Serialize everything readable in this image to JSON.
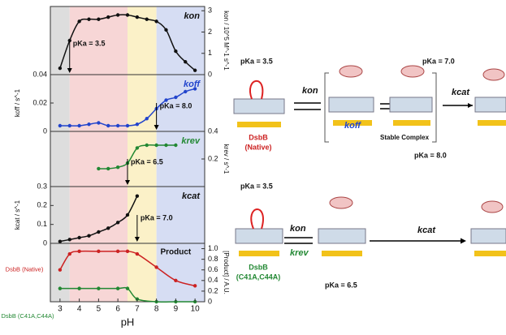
{
  "chart_data": [
    {
      "type": "line",
      "side": "right",
      "ylabel": "kon / 10^5 M^-1 s^-1",
      "ylim": [
        0,
        3.2
      ],
      "yticks": [
        0,
        1,
        2,
        3
      ],
      "series": [
        {
          "name": "kon",
          "color": "#111111",
          "x": [
            3,
            3.5,
            4,
            4.5,
            5,
            5.5,
            6,
            6.5,
            7,
            7.5,
            8,
            8.5,
            9,
            9.5,
            10
          ],
          "values": [
            0.3,
            1.6,
            2.5,
            2.6,
            2.6,
            2.7,
            2.8,
            2.8,
            2.7,
            2.6,
            2.5,
            2.1,
            1.1,
            0.6,
            0.2
          ]
        }
      ],
      "annotations": [
        {
          "text": "pKa = 3.5",
          "x": 3.5
        }
      ]
    },
    {
      "type": "line",
      "side": "left",
      "ylabel": "koff / s^-1",
      "ylim": [
        0,
        0.04
      ],
      "yticks": [
        0,
        0.02,
        0.04
      ],
      "series": [
        {
          "name": "koff",
          "color": "#2244cc",
          "x": [
            3,
            3.5,
            4,
            4.5,
            5,
            5.5,
            6,
            6.5,
            7,
            7.5,
            8,
            8.5,
            9,
            9.5,
            10
          ],
          "values": [
            0.004,
            0.004,
            0.004,
            0.005,
            0.006,
            0.004,
            0.004,
            0.004,
            0.005,
            0.009,
            0.016,
            0.022,
            0.024,
            0.028,
            0.03
          ]
        }
      ],
      "annotations": [
        {
          "text": "pKa = 8.0",
          "x": 8
        }
      ]
    },
    {
      "type": "line",
      "side": "right",
      "ylabel": "krev / s^-1",
      "ylim": [
        0,
        0.4
      ],
      "yticks": [
        0.2,
        0.4
      ],
      "series": [
        {
          "name": "krev",
          "color": "#228833",
          "x": [
            5,
            5.5,
            6,
            6.5,
            7,
            7.5,
            8,
            8.5,
            9
          ],
          "values": [
            0.13,
            0.13,
            0.14,
            0.17,
            0.28,
            0.3,
            0.3,
            0.3,
            0.3
          ]
        }
      ],
      "annotations": [
        {
          "text": "pKa = 6.5",
          "x": 6.5
        }
      ]
    },
    {
      "type": "line",
      "side": "left",
      "ylabel": "kcat / s^-1",
      "ylim": [
        0,
        0.3
      ],
      "yticks": [
        0,
        0.1,
        0.2,
        0.3
      ],
      "series": [
        {
          "name": "kcat",
          "color": "#111111",
          "x": [
            3,
            3.5,
            4,
            4.5,
            5,
            5.5,
            6,
            6.5,
            7
          ],
          "values": [
            0.01,
            0.02,
            0.03,
            0.04,
            0.06,
            0.08,
            0.11,
            0.15,
            0.25
          ]
        }
      ],
      "annotations": [
        {
          "text": "pKa = 7.0",
          "x": 7
        }
      ]
    },
    {
      "type": "line",
      "side": "right",
      "ylabel": "[Product] / A.U.",
      "ylim": [
        0,
        1.1
      ],
      "yticks": [
        0,
        0.2,
        0.4,
        0.6,
        0.8,
        {
          "value": 1,
          "label": "1.0"
        }
      ],
      "xlabel": "pH",
      "xlim": [
        2.5,
        10.5
      ],
      "xticks": [
        3,
        4,
        5,
        6,
        7,
        8,
        9,
        10
      ],
      "series": [
        {
          "name": "DsbB (Native)",
          "color": "#cc2222",
          "x": [
            3,
            3.5,
            4,
            5,
            6,
            6.5,
            7,
            8,
            9,
            10
          ],
          "values": [
            0.6,
            0.9,
            0.95,
            0.95,
            0.95,
            0.95,
            0.9,
            0.65,
            0.4,
            0.3
          ]
        },
        {
          "name": "DsbB (C41A,C44A)",
          "color": "#228833",
          "x": [
            3,
            4,
            5,
            6,
            6.5,
            7,
            8,
            9,
            10
          ],
          "values": [
            0.25,
            0.25,
            0.25,
            0.25,
            0.25,
            0.05,
            0,
            0,
            0
          ]
        }
      ],
      "annotations": [
        {
          "text": "Product",
          "x": 9
        }
      ]
    }
  ],
  "bands": [
    {
      "from": 2.5,
      "to": 3.5,
      "color": "#dddddd"
    },
    {
      "from": 3.5,
      "to": 6.5,
      "color": "#f7d6d6"
    },
    {
      "from": 6.5,
      "to": 8,
      "color": "#fbf1c8"
    },
    {
      "from": 8,
      "to": 10.5,
      "color": "#d6ddf3"
    }
  ],
  "diagram": {
    "labels": [
      "pKa = 3.5",
      "kon",
      "koff",
      "pKa = 7.0",
      "kcat",
      "Stable Complex",
      "pKa = 8.0",
      "DsbB",
      "(Native)",
      "pKa = 3.5",
      "kon",
      "krev",
      "DsbB",
      "(C41A,C44A)",
      "pKa = 6.5",
      "kcat"
    ]
  }
}
